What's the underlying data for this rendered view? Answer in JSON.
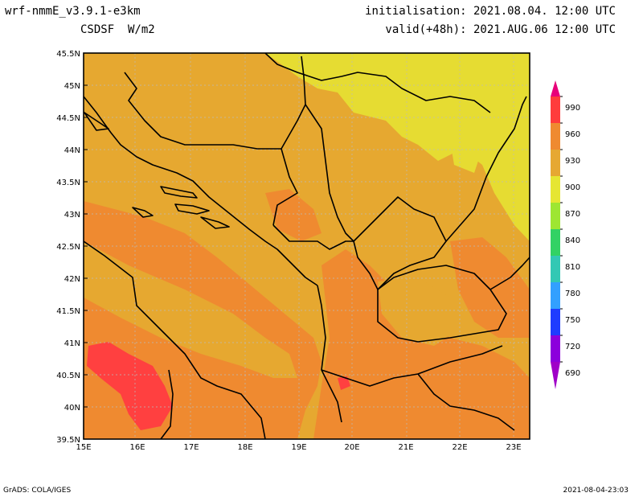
{
  "header": {
    "model": "wrf-nmmE_v3.9.1-e3km",
    "variable": "CSDSF  W/m2",
    "init": "initialisation: 2021.08.04. 12:00 UTC",
    "valid": "valid(+48h): 2021.AUG.06 12:00 UTC"
  },
  "footer": {
    "left": "GrADS: COLA/IGES",
    "right": "2021-08-04-23:03"
  },
  "axes": {
    "lat_labels": [
      "45.5N",
      "45N",
      "44.5N",
      "44N",
      "43.5N",
      "43N",
      "42.5N",
      "42N",
      "41.5N",
      "41N",
      "40.5N",
      "40N",
      "39.5N"
    ],
    "lon_labels": [
      "15E",
      "16E",
      "17E",
      "18E",
      "19E",
      "20E",
      "21E",
      "22E",
      "23E"
    ]
  },
  "colorbar": {
    "labels": [
      "990",
      "960",
      "930",
      "900",
      "870",
      "840",
      "810",
      "780",
      "750",
      "720",
      "690"
    ],
    "colors": [
      "#e8007a",
      "#ff3c3c",
      "#ef8a30",
      "#e6a832",
      "#e6e632",
      "#9ee632",
      "#32d264",
      "#32c8b4",
      "#32a0ff",
      "#1e3cff",
      "#8c00dc",
      "#a000c8"
    ]
  },
  "map_colors": {
    "c900": "#e6dc32",
    "c930": "#e6a830",
    "c960": "#ef8a30",
    "c990": "#ff4040"
  }
}
